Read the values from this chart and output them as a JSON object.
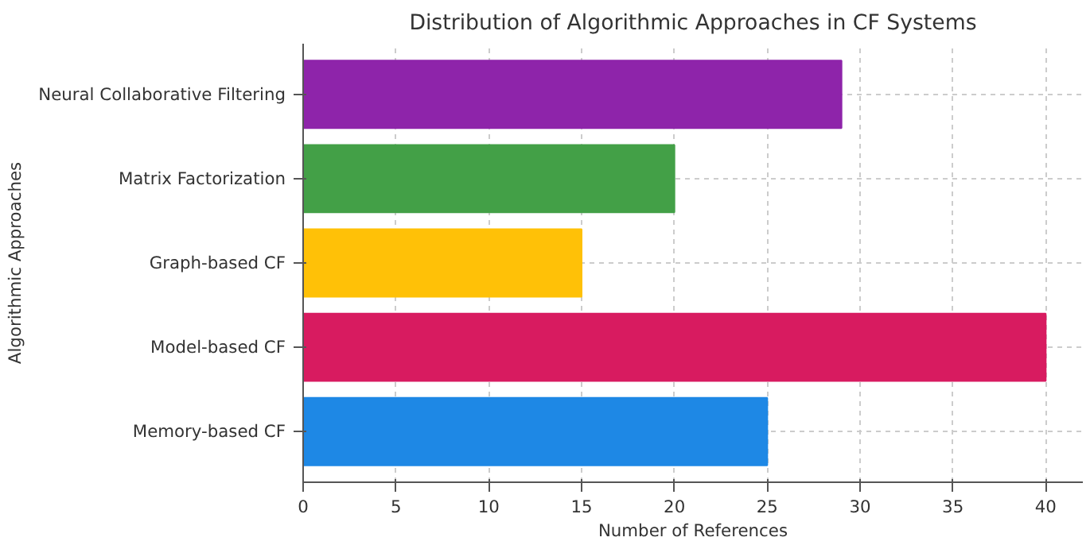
{
  "chart_data": {
    "type": "bar",
    "orientation": "horizontal",
    "title": "Distribution of Algorithmic Approaches in CF Systems",
    "xlabel": "Number of References",
    "ylabel": "Algorithmic Approaches",
    "categories": [
      "Neural Collaborative Filtering",
      "Matrix Factorization",
      "Graph-based CF",
      "Model-based CF",
      "Memory-based CF"
    ],
    "values": [
      29,
      20,
      15,
      40,
      25
    ],
    "colors": [
      "#8e24aa",
      "#43a047",
      "#ffc107",
      "#d81b60",
      "#1e88e5"
    ],
    "xlim": [
      0,
      42
    ],
    "xticks": [
      0,
      5,
      10,
      15,
      20,
      25,
      30,
      35,
      40
    ],
    "grid": true
  }
}
